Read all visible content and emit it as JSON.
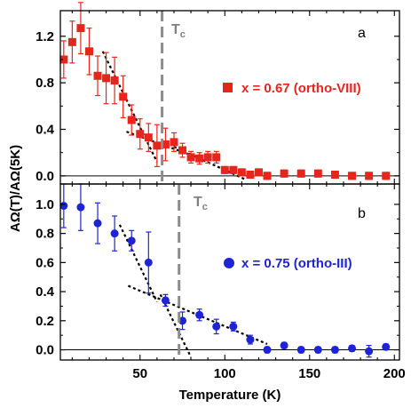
{
  "chart_data": {
    "type": "scatter",
    "xlabel": "Temperature (K)",
    "ylabel": "AΩ(T)/AΩ(5K)",
    "xlim": [
      3,
      203
    ],
    "x_ticks": [
      50,
      100,
      150,
      200
    ],
    "panels": [
      {
        "letter": "a",
        "ylim": [
          -0.07,
          1.42
        ],
        "y_ticks": [
          "0.0",
          "0.4",
          "0.8",
          "1.2"
        ],
        "y_tick_values": [
          0.0,
          0.4,
          0.8,
          1.2
        ],
        "tc_label": "T",
        "tc_sub": "c",
        "tc_value": 63,
        "series": {
          "name": "x = 0.67 (ortho-VIII)",
          "color": "#e8251c",
          "marker": "square",
          "x": [
            5,
            10,
            15,
            20,
            25,
            30,
            35,
            40,
            45,
            50,
            55,
            60,
            65,
            70,
            75,
            80,
            85,
            90,
            95,
            100,
            105,
            110,
            115,
            120,
            125,
            135,
            145,
            155,
            165,
            175,
            185,
            195
          ],
          "y": [
            1.0,
            1.15,
            1.27,
            1.07,
            0.86,
            0.84,
            0.82,
            0.68,
            0.48,
            0.36,
            0.33,
            0.26,
            0.27,
            0.29,
            0.22,
            0.16,
            0.15,
            0.16,
            0.16,
            0.05,
            0.05,
            0.03,
            0.01,
            0.03,
            0.0,
            0.02,
            0.02,
            0.02,
            0.01,
            0.0,
            0.0,
            0.0
          ],
          "err": [
            0.16,
            0.18,
            0.22,
            0.2,
            0.17,
            0.22,
            0.2,
            0.18,
            0.13,
            0.13,
            0.12,
            0.18,
            0.14,
            0.08,
            0.06,
            0.05,
            0.05,
            0.05,
            0.05,
            0.03,
            0.03,
            0.03,
            0.03,
            0.03,
            0.03,
            0.03,
            0.03,
            0.03,
            0.03,
            0.03,
            0.03,
            0.03
          ]
        },
        "guide_lines": [
          {
            "x": [
              28,
              60
            ],
            "y": [
              1.07,
              0.12
            ]
          },
          {
            "x": [
              42,
              80
            ],
            "y": [
              0.38,
              0.18
            ]
          },
          {
            "x": [
              70,
              112
            ],
            "y": [
              0.25,
              -0.03
            ]
          }
        ]
      },
      {
        "letter": "b",
        "ylim": [
          -0.07,
          1.14
        ],
        "y_ticks": [
          "0.0",
          "0.2",
          "0.4",
          "0.6",
          "0.8",
          "1.0"
        ],
        "y_tick_values": [
          0.0,
          0.2,
          0.4,
          0.6,
          0.8,
          1.0
        ],
        "tc_label": "T",
        "tc_sub": "c",
        "tc_value": 73,
        "series": {
          "name": "x = 0.75 (ortho-III)",
          "color": "#1e23d6",
          "marker": "circle",
          "x": [
            5,
            15,
            25,
            35,
            45,
            55,
            65,
            75,
            85,
            95,
            105,
            115,
            125,
            135,
            145,
            155,
            165,
            175,
            185,
            195
          ],
          "y": [
            0.99,
            0.98,
            0.87,
            0.8,
            0.75,
            0.6,
            0.34,
            0.2,
            0.24,
            0.16,
            0.16,
            0.07,
            0.0,
            0.03,
            0.0,
            0.0,
            0.0,
            0.01,
            -0.01,
            0.02
          ],
          "err": [
            0.15,
            0.16,
            0.14,
            0.12,
            0.07,
            0.21,
            0.04,
            0.06,
            0.04,
            0.05,
            0.03,
            0.03,
            0.02,
            0.02,
            0.02,
            0.02,
            0.02,
            0.02,
            0.04,
            0.02
          ]
        },
        "guide_lines": [
          {
            "x": [
              38,
              60
            ],
            "y": [
              0.86,
              0.33
            ]
          },
          {
            "x": [
              43,
              125
            ],
            "y": [
              0.44,
              0.04
            ]
          },
          {
            "x": [
              62,
              80
            ],
            "y": [
              0.38,
              -0.05
            ]
          }
        ]
      }
    ]
  }
}
